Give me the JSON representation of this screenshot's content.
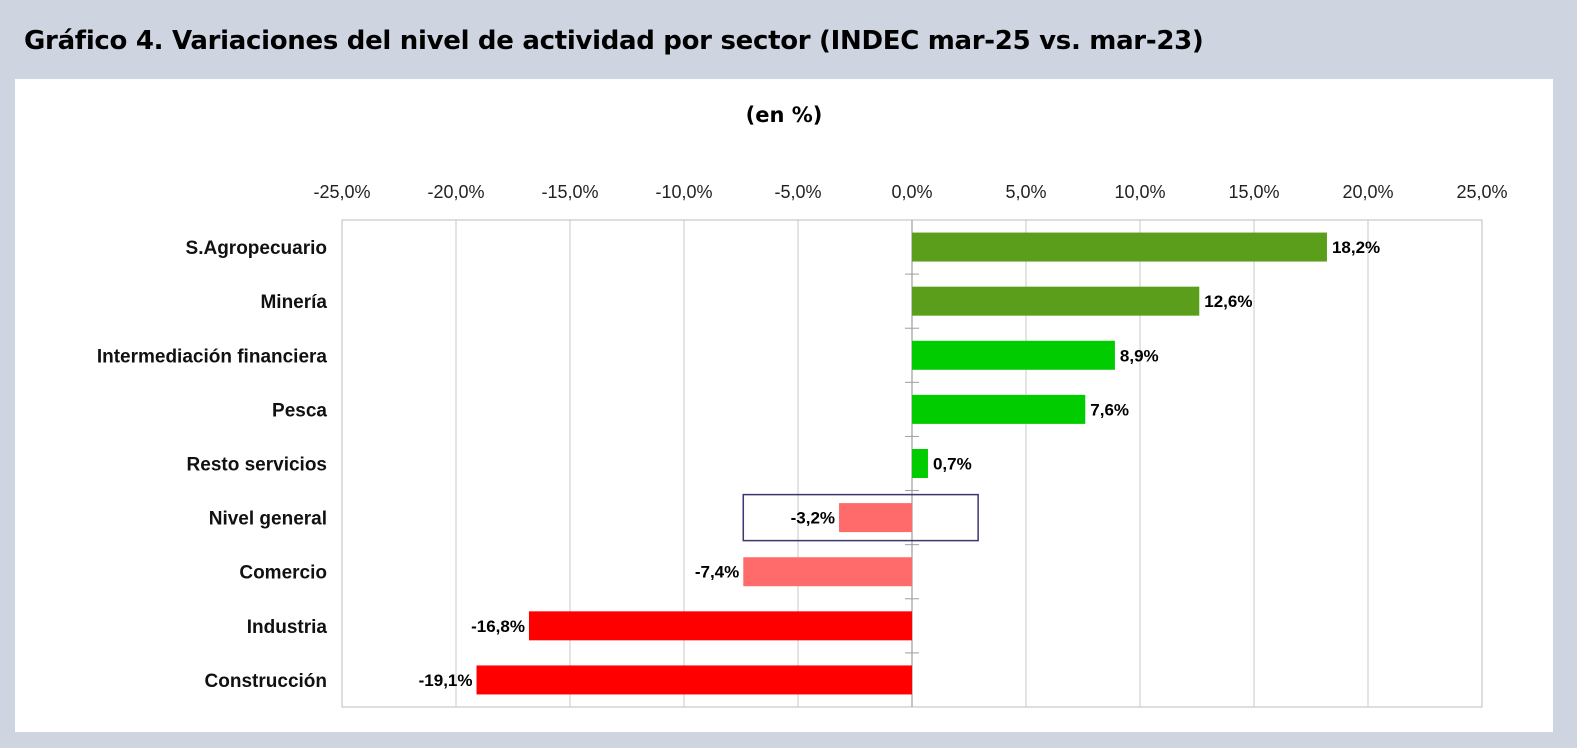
{
  "header": {
    "title": "Gráfico 4. Variaciones del nivel de actividad por sector (INDEC mar-25 vs. mar-23)"
  },
  "chart_data": {
    "type": "bar",
    "orientation": "horizontal",
    "subtitle": "(en %)",
    "xlim": [
      -25,
      25
    ],
    "x_ticks": [
      -25,
      -20,
      -15,
      -10,
      -5,
      0,
      5,
      10,
      15,
      20,
      25
    ],
    "x_tick_labels": [
      "-25,0%",
      "-20,0%",
      "-15,0%",
      "-10,0%",
      "-5,0%",
      "0,0%",
      "5,0%",
      "10,0%",
      "15,0%",
      "20,0%",
      "25,0%"
    ],
    "x_axis_position": "top",
    "grid": true,
    "categories": [
      "S.Agropecuario",
      "Minería",
      "Intermediación financiera",
      "Pesca",
      "Resto servicios",
      "Nivel general",
      "Comercio",
      "Industria",
      "Construcción"
    ],
    "values": [
      18.2,
      12.6,
      8.9,
      7.6,
      0.7,
      -3.2,
      -7.4,
      -16.8,
      -19.1
    ],
    "value_labels": [
      "18,2%",
      "12,6%",
      "8,9%",
      "7,6%",
      "0,7%",
      "-3,2%",
      "-7,4%",
      "-16,8%",
      "-19,1%"
    ],
    "bar_colors": [
      "#5a9e1c",
      "#5a9e1c",
      "#00cc00",
      "#00cc00",
      "#00cc00",
      "#ff6b6b",
      "#ff6b6b",
      "#ff0000",
      "#ff0000"
    ],
    "highlighted_category": "Nivel general",
    "highlight_color": "#3b3570"
  }
}
